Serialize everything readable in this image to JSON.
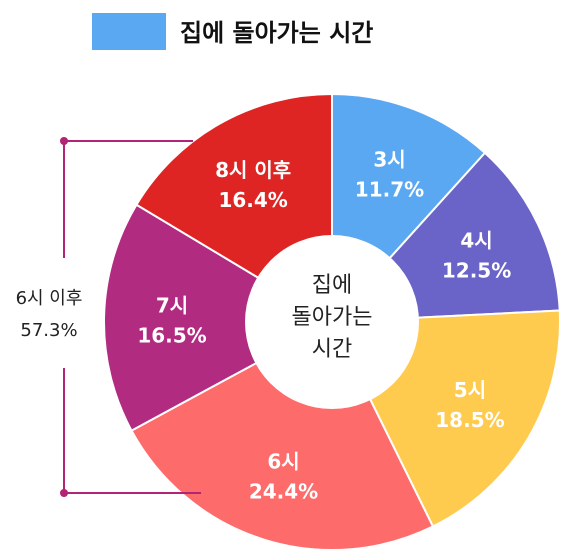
{
  "chart_data": {
    "type": "pie",
    "title": "집에 돌아가는 시간",
    "center_label_lines": [
      "집에",
      "돌아가는",
      "시간"
    ],
    "legend_color": "#5aa8f2",
    "slices": [
      {
        "name": "3시",
        "value": 11.7,
        "value_label": "11.7%",
        "color": "#5aa8f2",
        "text_color": "#ffffff"
      },
      {
        "name": "4시",
        "value": 12.5,
        "value_label": "12.5%",
        "color": "#6a63c8",
        "text_color": "#ffffff"
      },
      {
        "name": "5시",
        "value": 18.5,
        "value_label": "18.5%",
        "color": "#fecb4e",
        "text_color": "#1a1a1a"
      },
      {
        "name": "6시",
        "value": 24.4,
        "value_label": "24.4%",
        "color": "#fd6b6b",
        "text_color": "#ffffff"
      },
      {
        "name": "7시",
        "value": 16.5,
        "value_label": "16.5%",
        "color": "#b12b80",
        "text_color": "#ffffff"
      },
      {
        "name": "8시 이후",
        "value": 16.4,
        "value_label": "16.4%",
        "color": "#df2424",
        "text_color": "#ffffff"
      }
    ],
    "bracket": {
      "name": "6시 이후",
      "value": 57.3,
      "value_label": "57.3%",
      "color": "#b22474"
    }
  }
}
